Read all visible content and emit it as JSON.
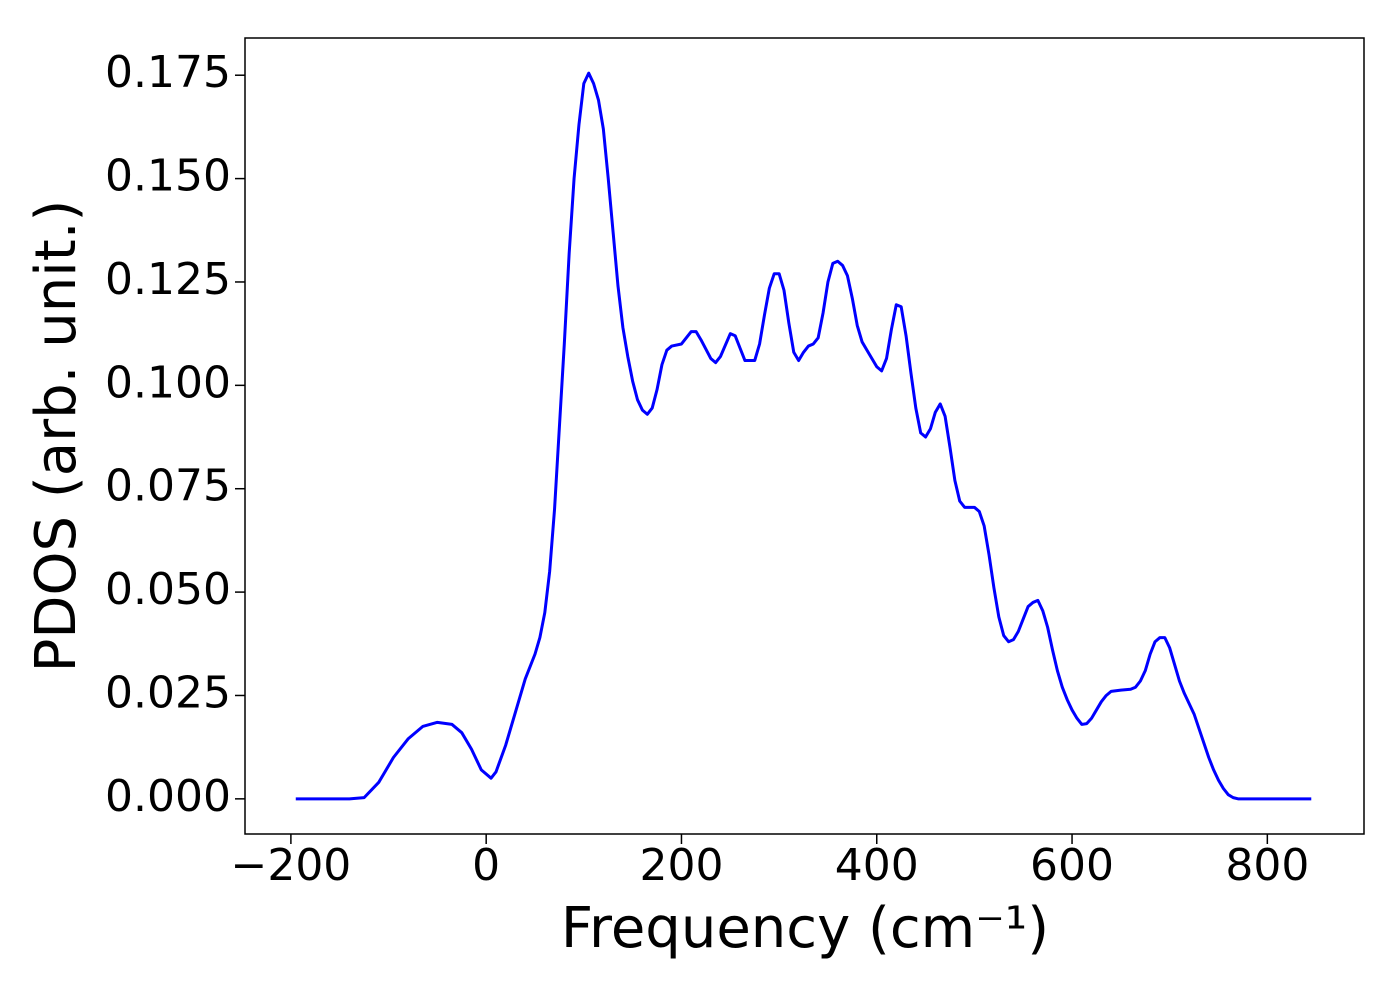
{
  "chart_data": {
    "type": "line",
    "x_label": "Frequency (cm⁻¹)",
    "y_label": "PDOS (arb. unit.)",
    "xlim": [
      -247,
      899
    ],
    "ylim": [
      -0.0085,
      0.184
    ],
    "xticks": [
      {
        "value": -200,
        "label": "−200"
      },
      0,
      200,
      400,
      600,
      800
    ],
    "yticks": [
      {
        "value": 0,
        "label": "0.000"
      },
      {
        "value": 0.025,
        "label": "0.025"
      },
      {
        "value": 0.05,
        "label": "0.050"
      },
      {
        "value": 0.075,
        "label": "0.075"
      },
      {
        "value": 0.1,
        "label": "0.100"
      },
      {
        "value": 0.125,
        "label": "0.125"
      },
      {
        "value": 0.15,
        "label": "0.150"
      },
      {
        "value": 0.175,
        "label": "0.175"
      }
    ],
    "grid": false,
    "series": [
      {
        "color": "#0000ff",
        "x": [
          -195,
          -140,
          -125,
          -110,
          -95,
          -80,
          -65,
          -50,
          -35,
          -25,
          -15,
          -5,
          5,
          10,
          20,
          30,
          40,
          50,
          55,
          60,
          65,
          70,
          75,
          80,
          85,
          90,
          95,
          100,
          105,
          110,
          115,
          120,
          125,
          130,
          135,
          140,
          145,
          150,
          155,
          160,
          165,
          170,
          175,
          180,
          185,
          190,
          200,
          210,
          215,
          220,
          230,
          235,
          240,
          250,
          255,
          260,
          265,
          275,
          280,
          285,
          290,
          295,
          300,
          305,
          310,
          315,
          320,
          325,
          330,
          335,
          340,
          345,
          350,
          355,
          360,
          365,
          370,
          375,
          380,
          385,
          390,
          395,
          400,
          405,
          410,
          415,
          420,
          425,
          430,
          435,
          440,
          445,
          450,
          455,
          460,
          465,
          470,
          475,
          480,
          485,
          490,
          500,
          505,
          510,
          515,
          520,
          525,
          530,
          535,
          540,
          545,
          550,
          555,
          560,
          565,
          570,
          575,
          580,
          585,
          590,
          595,
          600,
          605,
          610,
          615,
          620,
          625,
          630,
          635,
          640,
          650,
          660,
          665,
          670,
          675,
          680,
          685,
          690,
          695,
          700,
          705,
          710,
          715,
          720,
          725,
          730,
          735,
          740,
          745,
          750,
          755,
          760,
          765,
          770,
          800,
          845
        ],
        "values": [
          0,
          0,
          0.0003,
          0.004,
          0.01,
          0.0145,
          0.0175,
          0.0185,
          0.018,
          0.016,
          0.012,
          0.007,
          0.005,
          0.0065,
          0.013,
          0.021,
          0.029,
          0.035,
          0.039,
          0.045,
          0.055,
          0.07,
          0.09,
          0.11,
          0.132,
          0.15,
          0.163,
          0.173,
          0.1755,
          0.173,
          0.169,
          0.162,
          0.15,
          0.137,
          0.124,
          0.114,
          0.107,
          0.101,
          0.0965,
          0.094,
          0.093,
          0.0945,
          0.099,
          0.105,
          0.1085,
          0.1095,
          0.11,
          0.113,
          0.113,
          0.111,
          0.1065,
          0.1055,
          0.107,
          0.1125,
          0.112,
          0.109,
          0.106,
          0.106,
          0.11,
          0.117,
          0.1235,
          0.127,
          0.127,
          0.123,
          0.115,
          0.108,
          0.106,
          0.108,
          0.1095,
          0.11,
          0.1115,
          0.1175,
          0.125,
          0.1295,
          0.13,
          0.129,
          0.1265,
          0.121,
          0.1145,
          0.1105,
          0.1085,
          0.1065,
          0.1045,
          0.1035,
          0.1065,
          0.1135,
          0.1195,
          0.119,
          0.112,
          0.103,
          0.0945,
          0.0885,
          0.0875,
          0.0895,
          0.0935,
          0.0955,
          0.0925,
          0.085,
          0.077,
          0.072,
          0.0705,
          0.0705,
          0.0695,
          0.066,
          0.059,
          0.051,
          0.044,
          0.0395,
          0.038,
          0.0385,
          0.0405,
          0.0435,
          0.0465,
          0.0475,
          0.048,
          0.0455,
          0.0415,
          0.036,
          0.031,
          0.027,
          0.024,
          0.0215,
          0.0195,
          0.018,
          0.0182,
          0.0195,
          0.0215,
          0.0235,
          0.025,
          0.026,
          0.0263,
          0.0265,
          0.027,
          0.0285,
          0.031,
          0.035,
          0.038,
          0.039,
          0.039,
          0.0365,
          0.0325,
          0.0285,
          0.0255,
          0.023,
          0.0205,
          0.017,
          0.0135,
          0.01,
          0.007,
          0.0045,
          0.0025,
          0.001,
          0.0003,
          0,
          0,
          0
        ]
      }
    ]
  }
}
